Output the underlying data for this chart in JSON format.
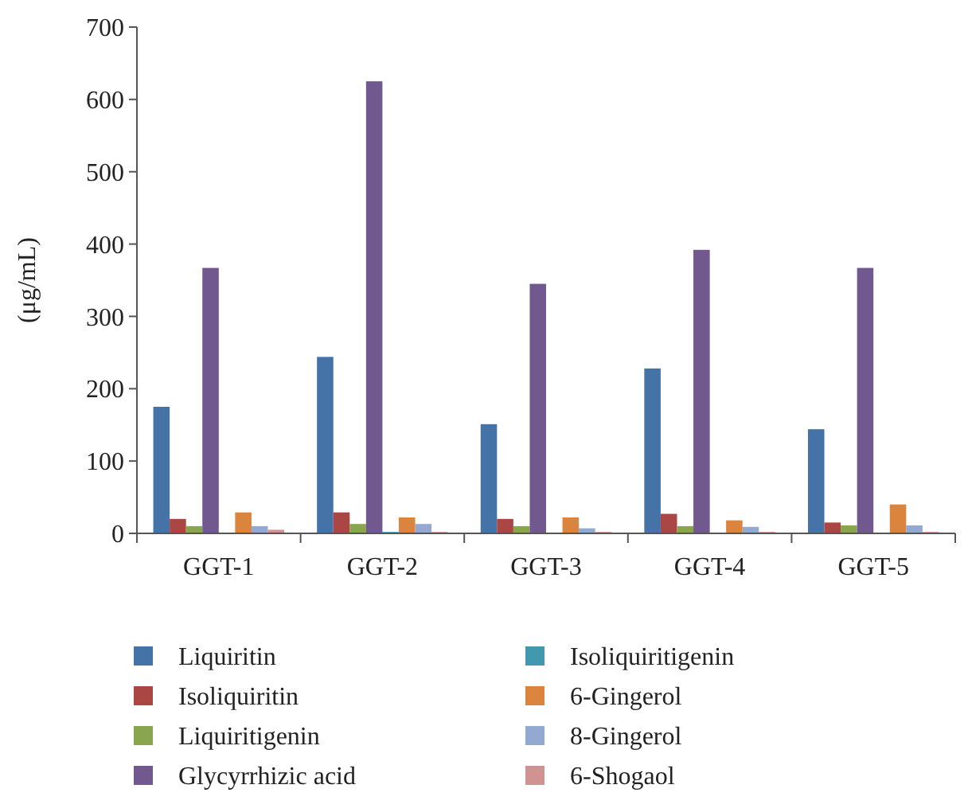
{
  "chart_data": {
    "type": "bar",
    "ylabel": "(μg/mL)",
    "categories": [
      "GGT-1",
      "GGT-2",
      "GGT-3",
      "GGT-4",
      "GGT-5"
    ],
    "ylim": [
      0,
      700
    ],
    "yticks": [
      0,
      100,
      200,
      300,
      400,
      500,
      600,
      700
    ],
    "grid": false,
    "legend": "bottom",
    "series": [
      {
        "name": "Liquiritin",
        "color": "#4572a7",
        "values": [
          175,
          244,
          151,
          228,
          144
        ]
      },
      {
        "name": "Isoliquiritin",
        "color": "#aa4643",
        "values": [
          20,
          29,
          20,
          27,
          15
        ]
      },
      {
        "name": "Liquiritigenin",
        "color": "#89a54e",
        "values": [
          10,
          13,
          10,
          10,
          11
        ]
      },
      {
        "name": "Glycyrrhizic acid",
        "color": "#71588f",
        "values": [
          367,
          625,
          345,
          392,
          367
        ]
      },
      {
        "name": "Isoliquiritigenin",
        "color": "#4198af",
        "values": [
          0,
          2,
          0,
          0,
          0
        ]
      },
      {
        "name": "6-Gingerol",
        "color": "#db843d",
        "values": [
          29,
          22,
          22,
          18,
          40
        ]
      },
      {
        "name": "8-Gingerol",
        "color": "#93a9cf",
        "values": [
          10,
          13,
          7,
          9,
          11
        ]
      },
      {
        "name": "6-Shogaol",
        "color": "#d19392",
        "values": [
          5,
          2,
          2,
          2,
          2
        ]
      }
    ]
  }
}
